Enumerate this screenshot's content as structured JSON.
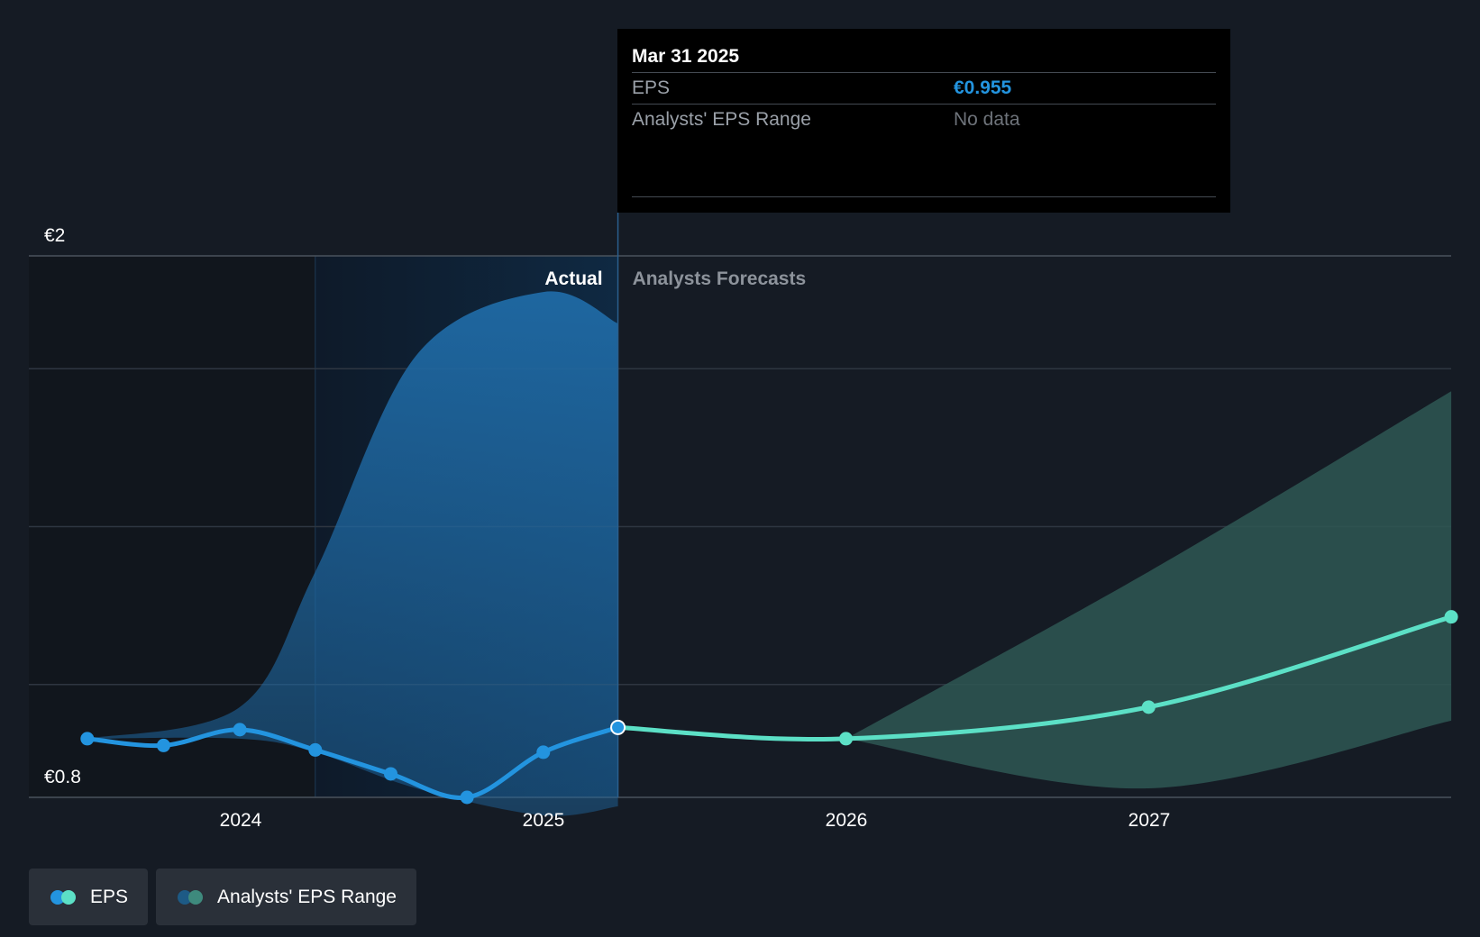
{
  "chart_data": {
    "type": "line",
    "y_axis": {
      "min": 0.8,
      "max": 2.0,
      "label_top": "€2",
      "label_bottom": "€0.8"
    },
    "x_axis": {
      "tick_labels": [
        "2024",
        "2025",
        "2026",
        "2027"
      ]
    },
    "region_labels": {
      "actual": "Actual",
      "forecast": "Analysts Forecasts"
    },
    "series": [
      {
        "name": "EPS",
        "points": [
          {
            "date": "2023-06-30",
            "value": 0.93
          },
          {
            "date": "2023-09-30",
            "value": 0.915
          },
          {
            "date": "2023-12-31",
            "value": 0.95
          },
          {
            "date": "2024-03-31",
            "value": 0.905
          },
          {
            "date": "2024-06-30",
            "value": 0.852
          },
          {
            "date": "2024-09-30",
            "value": 0.8
          },
          {
            "date": "2024-12-31",
            "value": 0.9
          },
          {
            "date": "2025-03-31",
            "value": 0.955
          }
        ]
      },
      {
        "name": "EPS forecast",
        "points": [
          {
            "date": "2025-03-31",
            "value": 0.955
          },
          {
            "date": "2025-12-31",
            "value": 0.93
          },
          {
            "date": "2026-12-31",
            "value": 1.0
          },
          {
            "date": "2027-12-31",
            "value": 1.2
          }
        ]
      }
    ],
    "past_range_band": [
      {
        "date": "2023-06-30",
        "low": 0.93,
        "high": 0.93
      },
      {
        "date": "2023-12-31",
        "low": 0.93,
        "high": 1.0
      },
      {
        "date": "2024-03-31",
        "low": 0.9,
        "high": 1.3
      },
      {
        "date": "2024-07-31",
        "low": 0.82,
        "high": 1.78
      },
      {
        "date": "2024-12-31",
        "low": 0.76,
        "high": 1.92
      },
      {
        "date": "2025-03-31",
        "low": 0.78,
        "high": 1.85
      }
    ],
    "forecast_range_band": [
      {
        "date": "2025-12-31",
        "low": 0.93,
        "high": 0.93
      },
      {
        "date": "2026-12-31",
        "low": 0.82,
        "high": 1.3
      },
      {
        "date": "2027-12-31",
        "low": 0.97,
        "high": 1.7
      }
    ],
    "highlighted_point": {
      "date": "2025-03-31",
      "value": 0.955
    },
    "grid": true
  },
  "tooltip": {
    "date": "Mar 31 2025",
    "eps_label": "EPS",
    "eps_value": "€0.955",
    "range_label": "Analysts' EPS Range",
    "range_value": "No data"
  },
  "legend": [
    {
      "label": "EPS",
      "colors": [
        "#2394df",
        "#5ce0c6"
      ]
    },
    {
      "label": "Analysts' EPS Range",
      "colors": [
        "#1d5a85",
        "#3e8a7d"
      ]
    }
  ],
  "colors": {
    "eps_actual": "#2394df",
    "eps_forecast": "#5ce0c6",
    "band_actual": "#1f6aa5",
    "band_forecast": "#2e5754",
    "background": "#151b24"
  }
}
